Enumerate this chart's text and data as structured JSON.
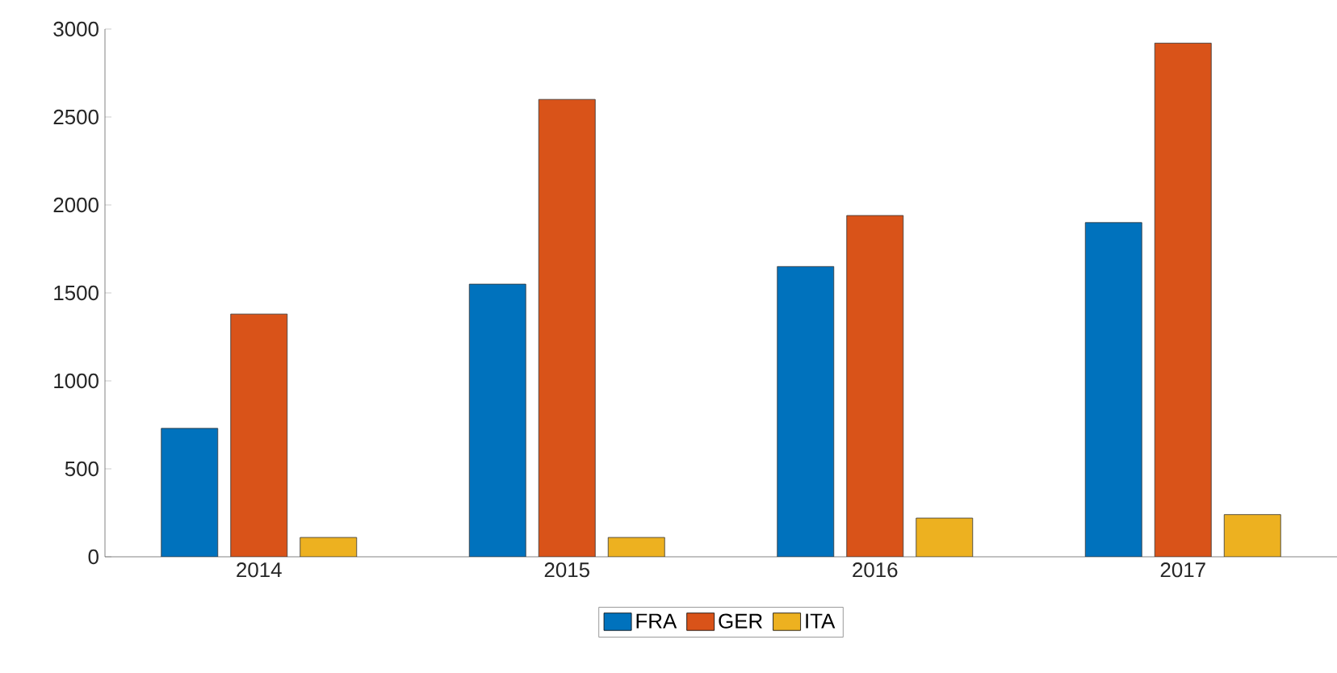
{
  "chart_data": {
    "type": "bar",
    "categories": [
      "2014",
      "2015",
      "2016",
      "2017"
    ],
    "series": [
      {
        "name": "FRA",
        "color": "#0072bd",
        "values": [
          730,
          1550,
          1650,
          1900
        ]
      },
      {
        "name": "GER",
        "color": "#d95319",
        "values": [
          1380,
          2600,
          1940,
          2920
        ]
      },
      {
        "name": "ITA",
        "color": "#edb120",
        "values": [
          110,
          110,
          220,
          240
        ]
      }
    ],
    "ylim": [
      0,
      3000
    ],
    "yticks": [
      0,
      500,
      1000,
      1500,
      2000,
      2500,
      3000
    ],
    "grid": false,
    "legend": "bottom"
  }
}
